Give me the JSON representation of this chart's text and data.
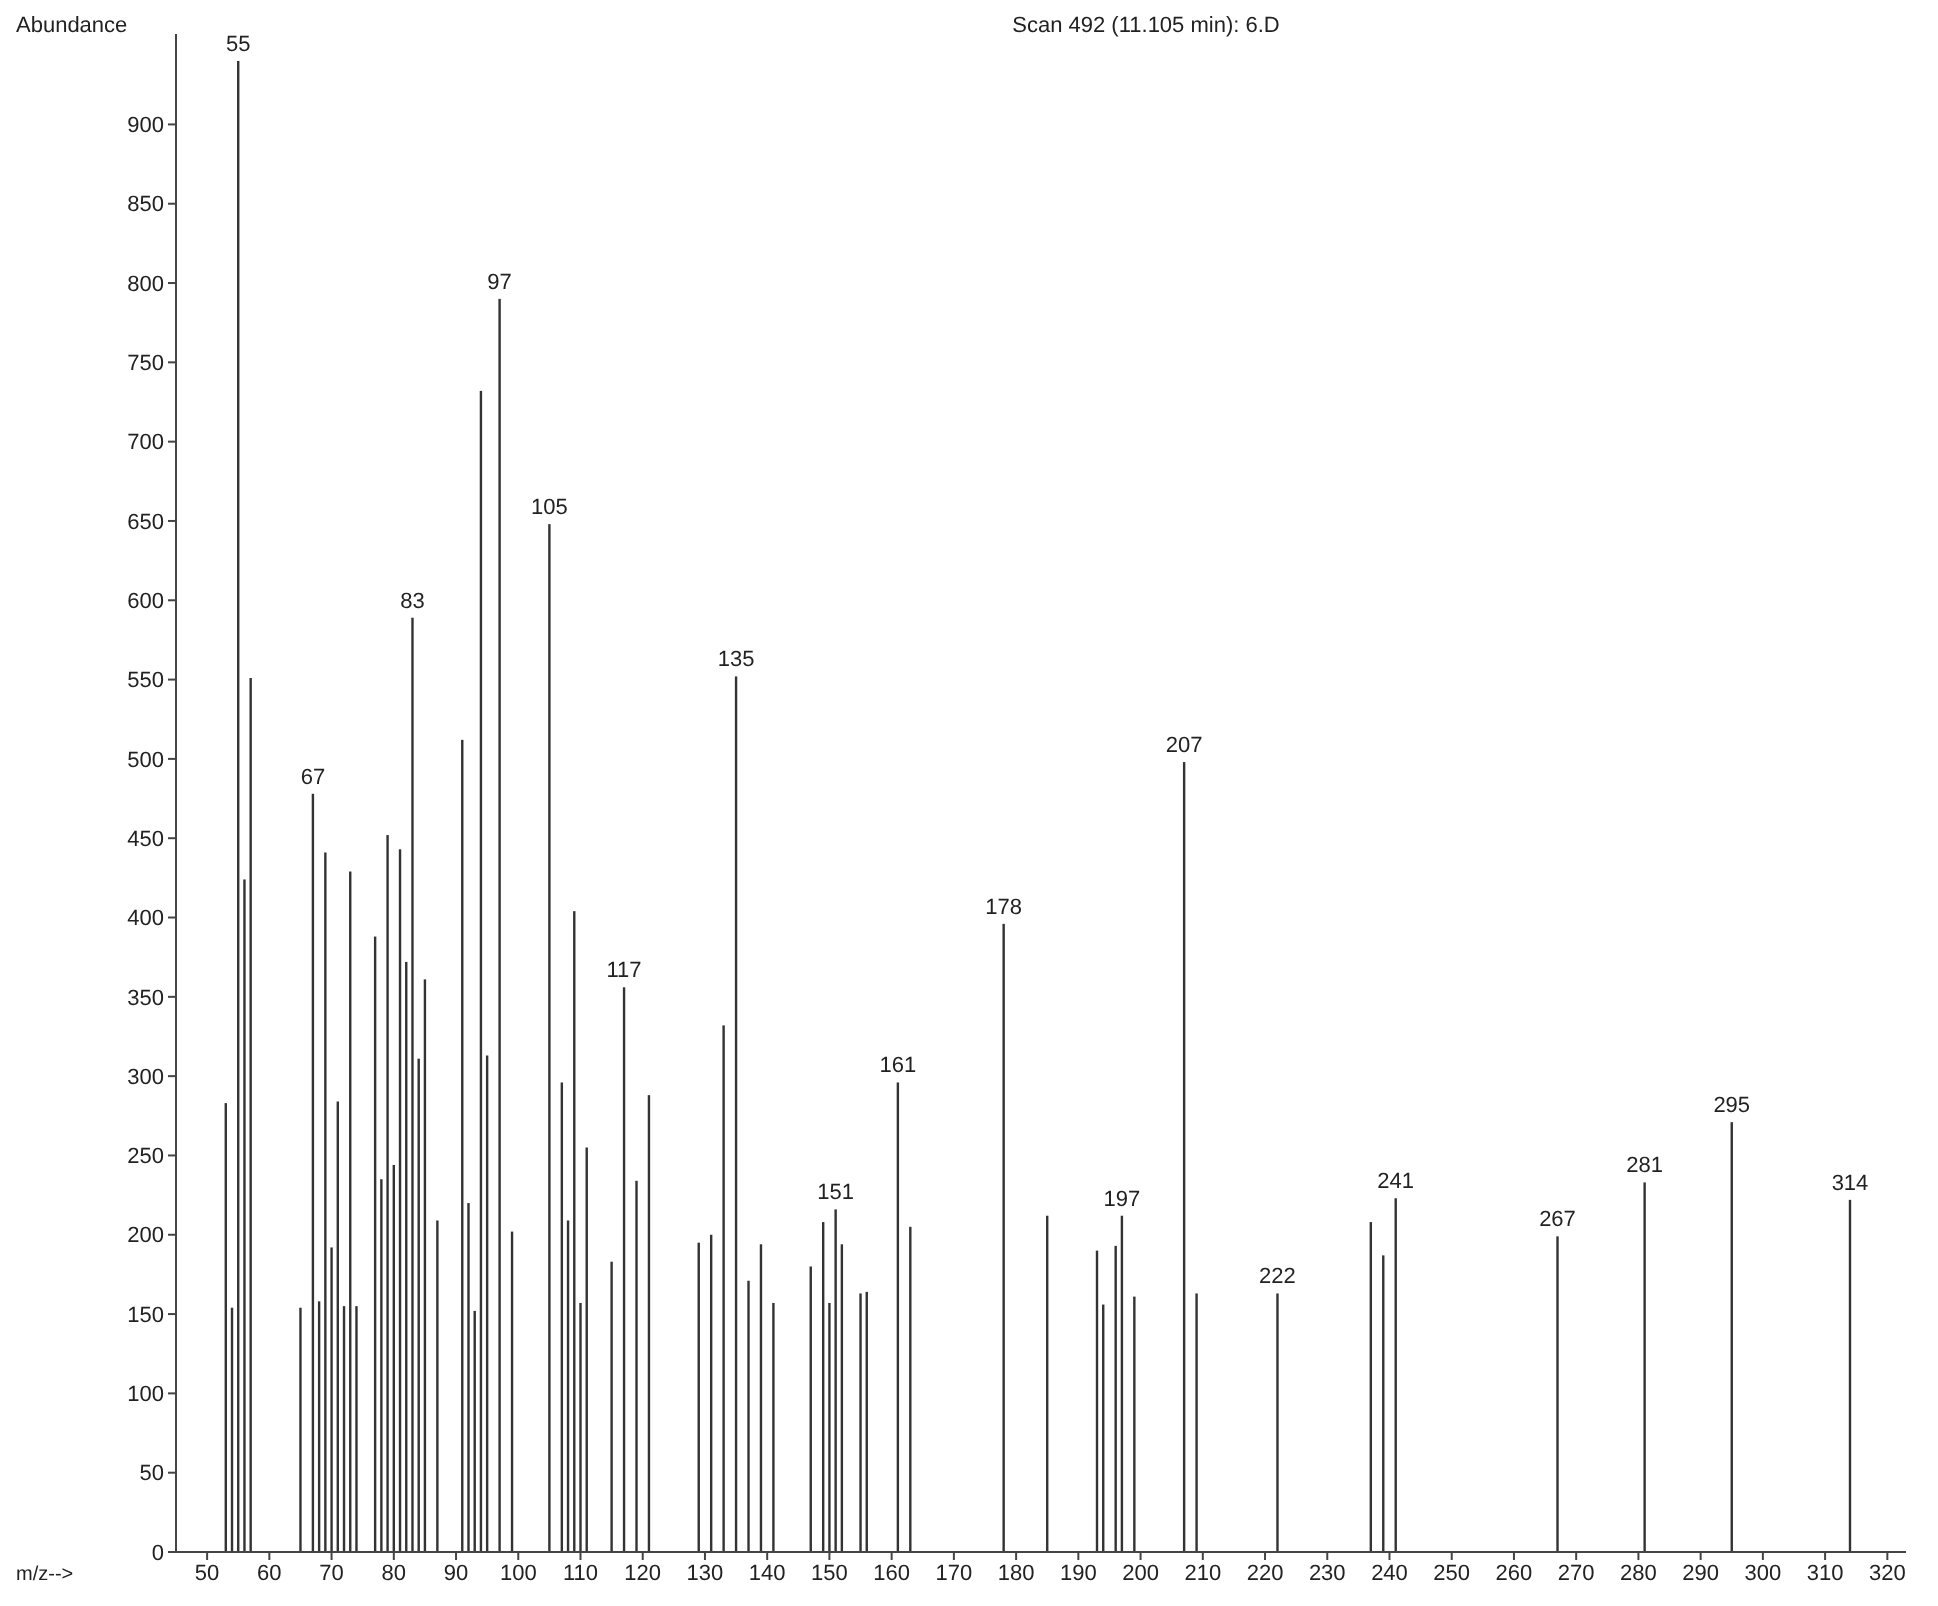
{
  "chart_data": {
    "type": "bar",
    "title": "Scan 492 (11.105 min): 6.D",
    "xlabel": "m/z-->",
    "ylabel": "Abundance",
    "x": [
      53,
      54,
      55,
      56,
      57,
      65,
      67,
      68,
      69,
      70,
      71,
      72,
      73,
      74,
      77,
      78,
      79,
      80,
      81,
      82,
      83,
      84,
      85,
      87,
      91,
      92,
      93,
      94,
      95,
      97,
      99,
      105,
      107,
      108,
      109,
      110,
      111,
      115,
      117,
      119,
      121,
      129,
      131,
      133,
      135,
      137,
      139,
      141,
      147,
      149,
      150,
      151,
      152,
      155,
      156,
      161,
      163,
      178,
      185,
      193,
      194,
      196,
      197,
      199,
      207,
      209,
      222,
      237,
      239,
      241,
      267,
      281,
      295,
      314
    ],
    "values": [
      283,
      154,
      940,
      424,
      551,
      154,
      478,
      158,
      441,
      192,
      284,
      155,
      429,
      155,
      388,
      235,
      452,
      244,
      443,
      372,
      589,
      311,
      361,
      209,
      512,
      220,
      152,
      732,
      313,
      790,
      202,
      648,
      296,
      209,
      404,
      157,
      255,
      183,
      356,
      234,
      288,
      195,
      200,
      332,
      552,
      171,
      194,
      157,
      180,
      208,
      157,
      216,
      194,
      163,
      164,
      296,
      205,
      396,
      212,
      190,
      156,
      193,
      212,
      161,
      498,
      163,
      163,
      208,
      187,
      223,
      199,
      233,
      271,
      222
    ],
    "annotations": [
      {
        "text": "55",
        "x": 55,
        "y": 940
      },
      {
        "text": "67",
        "x": 67,
        "y": 478
      },
      {
        "text": "83",
        "x": 83,
        "y": 589
      },
      {
        "text": "97",
        "x": 97,
        "y": 790
      },
      {
        "text": "105",
        "x": 105,
        "y": 648
      },
      {
        "text": "117",
        "x": 117,
        "y": 356
      },
      {
        "text": "135",
        "x": 135,
        "y": 552
      },
      {
        "text": "151",
        "x": 151,
        "y": 216
      },
      {
        "text": "161",
        "x": 161,
        "y": 296
      },
      {
        "text": "178",
        "x": 178,
        "y": 396
      },
      {
        "text": "197",
        "x": 197,
        "y": 212
      },
      {
        "text": "207",
        "x": 207,
        "y": 498
      },
      {
        "text": "222",
        "x": 222,
        "y": 163
      },
      {
        "text": "241",
        "x": 241,
        "y": 223
      },
      {
        "text": "267",
        "x": 267,
        "y": 199
      },
      {
        "text": "281",
        "x": 281,
        "y": 233
      },
      {
        "text": "295",
        "x": 295,
        "y": 271
      },
      {
        "text": "314",
        "x": 314,
        "y": 222
      }
    ],
    "color": "#333333",
    "xlim": [
      45,
      323
    ],
    "xticks": [
      50,
      60,
      70,
      80,
      90,
      100,
      110,
      120,
      130,
      140,
      150,
      160,
      170,
      180,
      190,
      200,
      210,
      220,
      230,
      240,
      250,
      260,
      270,
      280,
      290,
      300,
      310,
      320
    ],
    "ylim": [
      0,
      957
    ],
    "yticks": [
      0,
      50,
      100,
      150,
      200,
      250,
      300,
      350,
      400,
      450,
      500,
      550,
      600,
      650,
      700,
      750,
      800,
      850,
      900
    ],
    "grid": false
  }
}
